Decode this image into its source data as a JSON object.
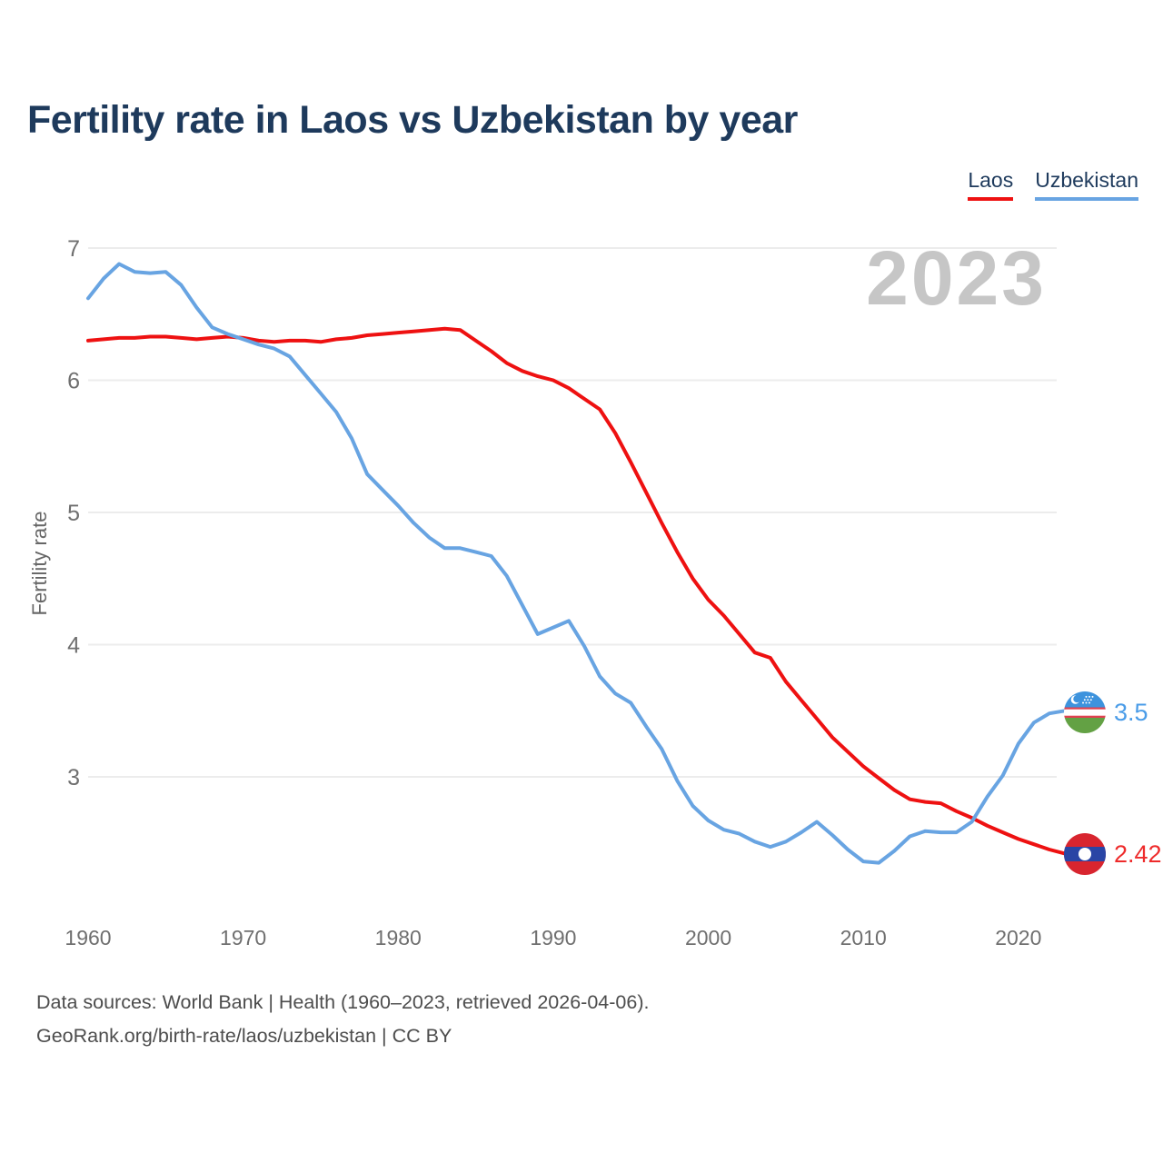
{
  "title": "Fertility rate in Laos vs Uzbekistan by year",
  "watermark": "2023",
  "legend": {
    "items": [
      {
        "label": "Laos",
        "color": "#ee1111"
      },
      {
        "label": "Uzbekistan",
        "color": "#68a4e2"
      }
    ]
  },
  "footer": {
    "sources": "Data sources: World Bank | Health (1960–2023, retrieved 2026-04-06).",
    "attribution": "GeoRank.org/birth-rate/laos/uzbekistan | CC BY"
  },
  "chart_data": {
    "type": "line",
    "title": "Fertility rate in Laos vs Uzbekistan by year",
    "xlabel": "",
    "ylabel": "Fertility rate",
    "legend_position": "top-right",
    "grid": "horizontal-only",
    "x_ticks": [
      1960,
      1970,
      1980,
      1990,
      2000,
      2010,
      2020
    ],
    "y_ticks": [
      7,
      6,
      5,
      4,
      3
    ],
    "xlim": [
      1960,
      2023
    ],
    "ylim": [
      2.2,
      7.1
    ],
    "x": [
      1960,
      1961,
      1962,
      1963,
      1964,
      1965,
      1966,
      1967,
      1968,
      1969,
      1970,
      1971,
      1972,
      1973,
      1974,
      1975,
      1976,
      1977,
      1978,
      1979,
      1980,
      1981,
      1982,
      1983,
      1984,
      1985,
      1986,
      1987,
      1988,
      1989,
      1990,
      1991,
      1992,
      1993,
      1994,
      1995,
      1996,
      1997,
      1998,
      1999,
      2000,
      2001,
      2002,
      2003,
      2004,
      2005,
      2006,
      2007,
      2008,
      2009,
      2010,
      2011,
      2012,
      2013,
      2014,
      2015,
      2016,
      2017,
      2018,
      2019,
      2020,
      2021,
      2022,
      2023
    ],
    "series": [
      {
        "name": "Laos",
        "color": "#ee1111",
        "end_label": "2.42",
        "values": [
          6.3,
          6.31,
          6.32,
          6.32,
          6.33,
          6.33,
          6.32,
          6.31,
          6.32,
          6.33,
          6.32,
          6.3,
          6.29,
          6.3,
          6.3,
          6.29,
          6.31,
          6.32,
          6.34,
          6.35,
          6.36,
          6.37,
          6.38,
          6.39,
          6.38,
          6.3,
          6.22,
          6.13,
          6.07,
          6.03,
          6.0,
          5.94,
          5.86,
          5.78,
          5.6,
          5.38,
          5.15,
          4.92,
          4.7,
          4.5,
          4.34,
          4.22,
          4.08,
          3.94,
          3.9,
          3.72,
          3.58,
          3.44,
          3.3,
          3.19,
          3.08,
          2.99,
          2.9,
          2.83,
          2.81,
          2.8,
          2.74,
          2.69,
          2.63,
          2.58,
          2.53,
          2.49,
          2.45,
          2.42
        ]
      },
      {
        "name": "Uzbekistan",
        "color": "#68a4e2",
        "end_label": "3.5",
        "values": [
          6.62,
          6.77,
          6.88,
          6.82,
          6.81,
          6.82,
          6.72,
          6.55,
          6.4,
          6.35,
          6.31,
          6.27,
          6.24,
          6.18,
          6.04,
          5.9,
          5.76,
          5.56,
          5.29,
          5.17,
          5.05,
          4.92,
          4.81,
          4.73,
          4.73,
          4.7,
          4.67,
          4.52,
          4.3,
          4.08,
          4.13,
          4.18,
          3.99,
          3.76,
          3.63,
          3.56,
          3.38,
          3.21,
          2.97,
          2.78,
          2.67,
          2.6,
          2.57,
          2.51,
          2.47,
          2.51,
          2.58,
          2.66,
          2.56,
          2.45,
          2.36,
          2.35,
          2.44,
          2.55,
          2.59,
          2.58,
          2.58,
          2.66,
          2.85,
          3.01,
          3.25,
          3.41,
          3.48,
          3.5
        ]
      }
    ]
  }
}
